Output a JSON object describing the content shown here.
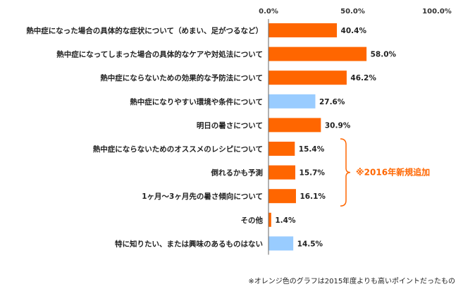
{
  "chart_data": {
    "type": "bar",
    "orientation": "horizontal",
    "xlim": [
      0,
      100
    ],
    "ticks": [
      "0.0%",
      "50.0%",
      "100.0%"
    ],
    "tick_values": [
      0,
      50,
      100
    ],
    "grid": false,
    "categories": [
      "熱中症になった場合の具体的な症状について（めまい、足がつるなど）",
      "熱中症になってしまった場合の具体的なケアや対処法について",
      "熱中症にならないための効果的な予防法について",
      "熱中症になりやすい環境や条件について",
      "明日の暑さについて",
      "熱中症にならないためのオススメのレシピについて",
      "倒れるかも予測",
      "1ヶ月～3ヶ月先の暑さ傾向について",
      "その他",
      "特に知りたい、または興味のあるものはない"
    ],
    "values": [
      40.4,
      58.0,
      46.2,
      27.6,
      30.9,
      15.4,
      15.7,
      16.1,
      1.4,
      14.5
    ],
    "value_labels": [
      "40.4%",
      "58.0%",
      "46.2%",
      "27.6%",
      "30.9%",
      "15.4%",
      "15.7%",
      "16.1%",
      "1.4%",
      "14.5%"
    ],
    "bar_colors": [
      "orange",
      "orange",
      "orange",
      "blue",
      "orange",
      "orange",
      "orange",
      "orange",
      "orange",
      "blue"
    ],
    "group_annotation": {
      "text": "※2016年新規追加",
      "first_index": 5,
      "last_index": 7
    },
    "footnote": "※オレンジ色のグラフは2015年度よりも高いポイントだったもの"
  },
  "colors": {
    "orange": "#ff6600",
    "blue": "#99ccff",
    "annotation": "#ff6600",
    "axis": "#666666"
  }
}
